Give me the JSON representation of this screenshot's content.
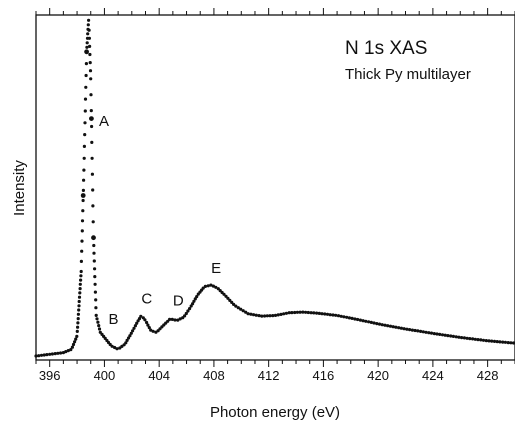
{
  "chart_data": {
    "type": "scatter",
    "title": "N 1s XAS",
    "subtitle": "Thick Py multilayer",
    "xlabel": "Photon energy (eV)",
    "ylabel": "Intensity",
    "xlim": [
      395,
      430
    ],
    "ylim": [
      0,
      1.0
    ],
    "x_ticks": [
      396,
      400,
      404,
      408,
      412,
      416,
      420,
      424,
      428
    ],
    "y_ticks_labeled": false,
    "grid": false,
    "legend": "none",
    "marker_color": "#111111",
    "annotations": [
      {
        "text": "A",
        "x": 399.6,
        "y": 0.68
      },
      {
        "text": "B",
        "x": 400.3,
        "y": 0.095
      },
      {
        "text": "C",
        "x": 402.7,
        "y": 0.155
      },
      {
        "text": "D",
        "x": 405.0,
        "y": 0.15
      },
      {
        "text": "E",
        "x": 407.8,
        "y": 0.245
      }
    ],
    "series": [
      {
        "x": [
          395.0,
          396.0,
          397.0,
          397.6,
          398.0,
          398.3,
          398.5,
          398.7,
          398.85,
          399.0,
          399.2,
          399.4,
          399.7,
          400.0,
          400.5,
          401.0,
          401.5,
          402.0,
          402.4,
          402.7,
          403.0,
          403.4,
          403.8,
          404.3,
          404.8,
          405.3,
          405.8,
          406.3,
          406.8,
          407.3,
          407.8,
          408.3,
          408.8,
          409.5,
          410.5,
          411.5,
          412.5,
          413.5,
          414.5,
          415.5,
          417.0,
          418.5,
          420.0,
          422.0,
          424.0,
          426.0,
          428.0,
          430.0
        ],
        "y": [
          0.0,
          0.005,
          0.01,
          0.02,
          0.06,
          0.25,
          0.55,
          0.9,
          1.0,
          0.82,
          0.35,
          0.12,
          0.07,
          0.055,
          0.03,
          0.02,
          0.035,
          0.07,
          0.1,
          0.12,
          0.105,
          0.075,
          0.07,
          0.09,
          0.11,
          0.105,
          0.115,
          0.145,
          0.18,
          0.205,
          0.21,
          0.2,
          0.18,
          0.15,
          0.125,
          0.118,
          0.12,
          0.128,
          0.13,
          0.127,
          0.12,
          0.108,
          0.095,
          0.08,
          0.067,
          0.055,
          0.045,
          0.038
        ]
      }
    ]
  }
}
